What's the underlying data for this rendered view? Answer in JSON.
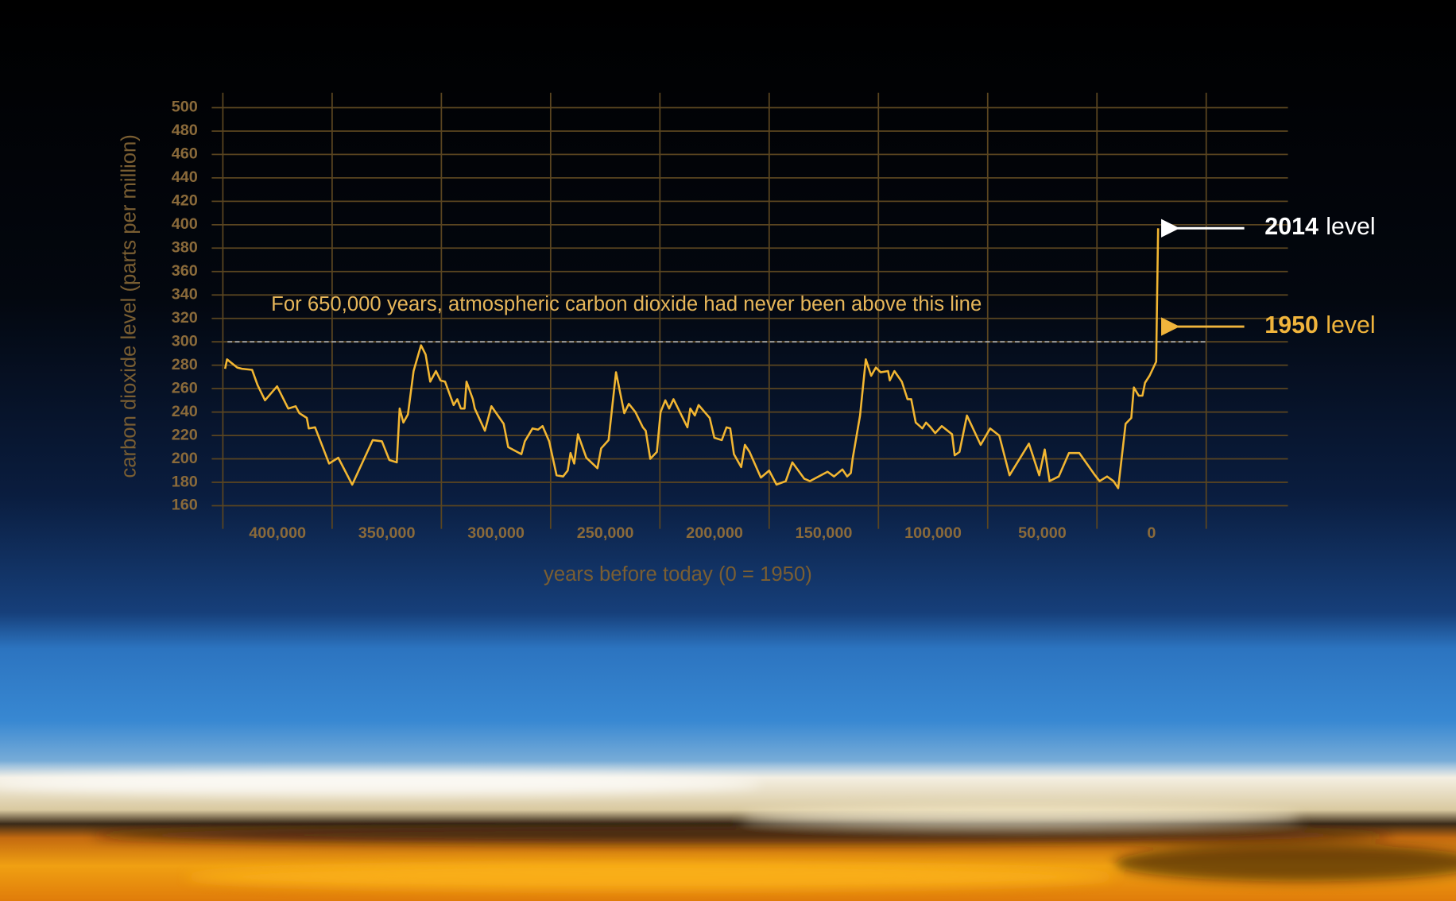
{
  "chart_data": {
    "type": "line",
    "x_label": "years before today (0 = 1950)",
    "y_label": "carbon dioxide level (parts per million)",
    "x": [
      424000,
      423100,
      418400,
      416300,
      411600,
      409100,
      405700,
      400200,
      395100,
      391700,
      390000,
      386600,
      385700,
      382800,
      376400,
      372200,
      365800,
      356400,
      352200,
      348800,
      345400,
      344100,
      342400,
      340300,
      337700,
      334300,
      332200,
      330100,
      327500,
      325400,
      323300,
      319400,
      317700,
      316100,
      314400,
      313500,
      310600,
      309700,
      305100,
      302100,
      296500,
      294400,
      288400,
      286800,
      283300,
      280800,
      278700,
      275700,
      272300,
      269300,
      267200,
      265900,
      264200,
      262500,
      258700,
      253600,
      251900,
      248500,
      245100,
      241300,
      239200,
      236200,
      232800,
      231500,
      229400,
      226400,
      224700,
      222500,
      220800,
      218800,
      212400,
      211100,
      209000,
      207300,
      202200,
      200100,
      196700,
      194500,
      192800,
      191100,
      187800,
      186100,
      184000,
      178800,
      175000,
      171600,
      167400,
      164400,
      158900,
      156300,
      148300,
      145300,
      141500,
      139300,
      137600,
      136800,
      133400,
      130800,
      128300,
      126200,
      124000,
      120600,
      119800,
      117700,
      114300,
      111700,
      110000,
      107900,
      104900,
      103200,
      101100,
      99000,
      96000,
      91300,
      90100,
      87900,
      84500,
      78200,
      73900,
      69700,
      65000,
      56100,
      51400,
      48900,
      46700,
      42500,
      37800,
      33100,
      26300,
      23800,
      20400,
      17400,
      15300,
      11900,
      9300,
      8100,
      5900,
      4200,
      3000,
      900,
      -2100,
      -3000
    ],
    "values": [
      277,
      285,
      278,
      277,
      276,
      263,
      250,
      262,
      243,
      245,
      239,
      235,
      226,
      227,
      196,
      201,
      178,
      216,
      215,
      199,
      197,
      243,
      231,
      238,
      275,
      297,
      289,
      266,
      275,
      267,
      266,
      246,
      251,
      243,
      243,
      266,
      251,
      243,
      224,
      245,
      230,
      210,
      204,
      215,
      226,
      225,
      228,
      215,
      186,
      185,
      190,
      205,
      196,
      221,
      201,
      192,
      209,
      216,
      274,
      239,
      247,
      240,
      227,
      224,
      200,
      206,
      240,
      250,
      243,
      251,
      227,
      243,
      237,
      246,
      235,
      218,
      216,
      227,
      226,
      204,
      193,
      212,
      206,
      184,
      190,
      178,
      181,
      197,
      183,
      181,
      189,
      185,
      191,
      185,
      188,
      200,
      237,
      285,
      271,
      278,
      274,
      275,
      267,
      275,
      266,
      251,
      251,
      231,
      226,
      231,
      227,
      222,
      228,
      221,
      203,
      206,
      237,
      212,
      226,
      220,
      186,
      213,
      186,
      208,
      181,
      185,
      205,
      205,
      187,
      181,
      185,
      181,
      175,
      230,
      235,
      261,
      254,
      254,
      265,
      271,
      283,
      397
    ],
    "color": "#f2b632",
    "xlim": [
      425000,
      -25000
    ],
    "ylim": [
      160,
      500
    ],
    "xticks": [
      {
        "value": 400000,
        "label": "400,000"
      },
      {
        "value": 350000,
        "label": "350,000"
      },
      {
        "value": 300000,
        "label": "300,000"
      },
      {
        "value": 250000,
        "label": "250,000"
      },
      {
        "value": 200000,
        "label": "200,000"
      },
      {
        "value": 150000,
        "label": "150,000"
      },
      {
        "value": 100000,
        "label": "100,000"
      },
      {
        "value": 50000,
        "label": "50,000"
      },
      0
    ],
    "yticks": [
      160,
      180,
      200,
      220,
      240,
      260,
      280,
      300,
      320,
      340,
      360,
      380,
      400,
      420,
      440,
      460,
      480,
      500
    ],
    "grid": true,
    "threshold": {
      "value": 300,
      "label": "For 650,000 years, atmospheric carbon dioxide had never been above this line"
    },
    "level_markers": [
      {
        "year": "2014",
        "text": "level",
        "value": 397,
        "color": "#ffffff"
      },
      {
        "year": "1950",
        "text": "level",
        "value": 313,
        "color": "#f0b43c"
      }
    ]
  }
}
